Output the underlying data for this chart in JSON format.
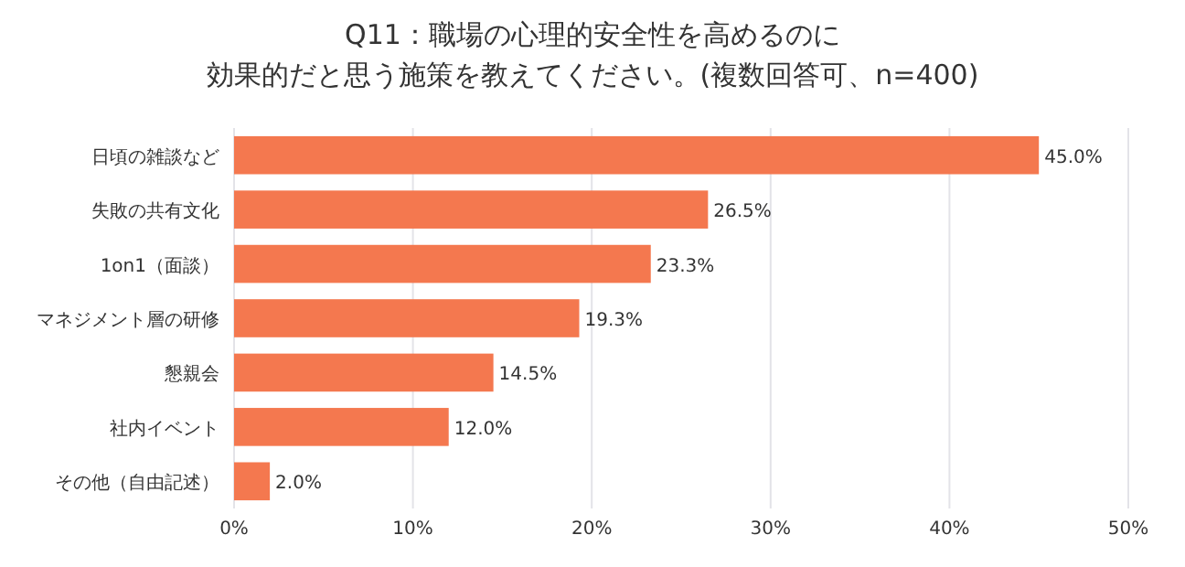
{
  "chart_data": {
    "type": "bar",
    "orientation": "horizontal",
    "title": "Q11：職場の心理的安全性を高めるのに",
    "subtitle": "効果的だと思う施策を教えてください。(複数回答可、n=400)",
    "categories": [
      "日頃の雑談など",
      "失敗の共有文化",
      "1on1（面談）",
      "マネジメント層の研修",
      "懇親会",
      "社内イベント",
      "その他（自由記述）"
    ],
    "values": [
      45.0,
      26.5,
      23.3,
      19.3,
      14.5,
      12.0,
      2.0
    ],
    "value_labels": [
      "45.0%",
      "26.5%",
      "23.3%",
      "19.3%",
      "14.5%",
      "12.0%",
      "2.0%"
    ],
    "color": "#f4784f",
    "xlim": [
      0,
      50
    ],
    "xticks": [
      {
        "value": 0,
        "label": "0%"
      },
      {
        "value": 10,
        "label": "10%"
      },
      {
        "value": 20,
        "label": "20%"
      },
      {
        "value": 30,
        "label": "30%"
      },
      {
        "value": 40,
        "label": "40%"
      },
      {
        "value": 50,
        "label": "50%"
      }
    ],
    "grid": "x"
  }
}
